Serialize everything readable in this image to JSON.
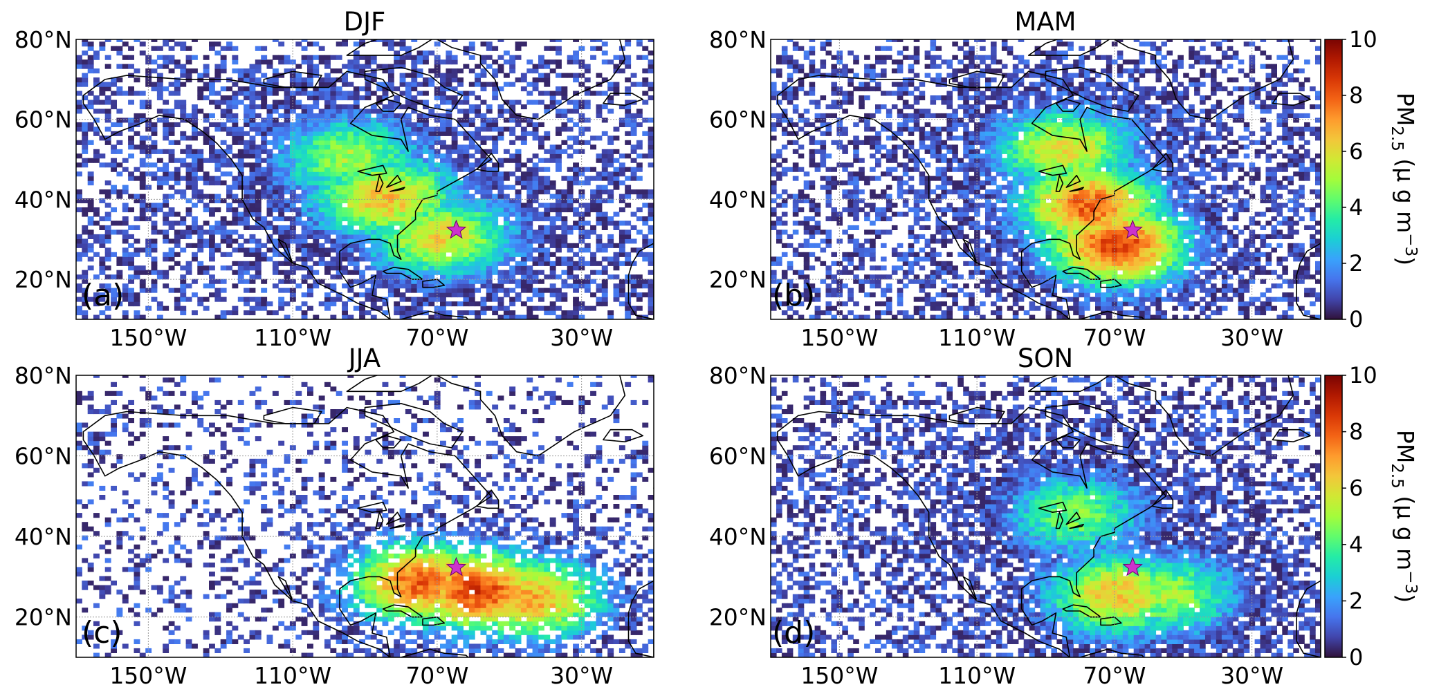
{
  "figure": {
    "colorbar": {
      "ticks": [
        "0",
        "2",
        "4",
        "6",
        "8",
        "10"
      ],
      "vmin": 0,
      "vmax": 10,
      "label_main": "PM",
      "label_sub": "2.5",
      "label_units": " (μ g m",
      "label_exp": "−3",
      "label_close": ")",
      "colormap": [
        "#30123b",
        "#4145ab",
        "#4675ed",
        "#39a2fc",
        "#1bcfd4",
        "#24eca6",
        "#61fc6c",
        "#a4fc3b",
        "#d1e834",
        "#f3c63a",
        "#fe9b2d",
        "#f36315",
        "#d93806",
        "#b11901",
        "#7a0402"
      ]
    },
    "lat_labels": [
      "80°N",
      "60°N",
      "40°N",
      "20°N"
    ],
    "lat_values": [
      80,
      60,
      40,
      20
    ],
    "lon_labels": [
      "150°W",
      "110°W",
      "70°W",
      "30°W"
    ],
    "lon_values": [
      -150,
      -110,
      -70,
      -30
    ],
    "extent": {
      "lon_min": -170,
      "lon_max": -10,
      "lat_min": 10,
      "lat_max": 80
    },
    "site_marker": {
      "lon": -64.7,
      "lat": 32.3,
      "color": "#cc33cc",
      "shape": "star"
    },
    "panels": [
      {
        "id": "a",
        "title": "DJF",
        "letter": "(a)",
        "peak": [
          [
            -85,
            40,
            6.5
          ],
          [
            -70,
            30,
            6
          ],
          [
            -95,
            50,
            5
          ]
        ]
      },
      {
        "id": "b",
        "title": "MAM",
        "letter": "(b)",
        "peak": [
          [
            -78,
            38,
            8
          ],
          [
            -70,
            28,
            8.5
          ],
          [
            -85,
            52,
            6
          ]
        ]
      },
      {
        "id": "c",
        "title": "JJA",
        "letter": "(c)",
        "peak": [
          [
            -60,
            26,
            8.5
          ],
          [
            -45,
            24,
            7
          ],
          [
            -75,
            28,
            8
          ]
        ]
      },
      {
        "id": "d",
        "title": "SON",
        "letter": "(d)",
        "peak": [
          [
            -70,
            25,
            6.5
          ],
          [
            -82,
            45,
            4.5
          ],
          [
            -55,
            25,
            5
          ]
        ]
      }
    ]
  }
}
